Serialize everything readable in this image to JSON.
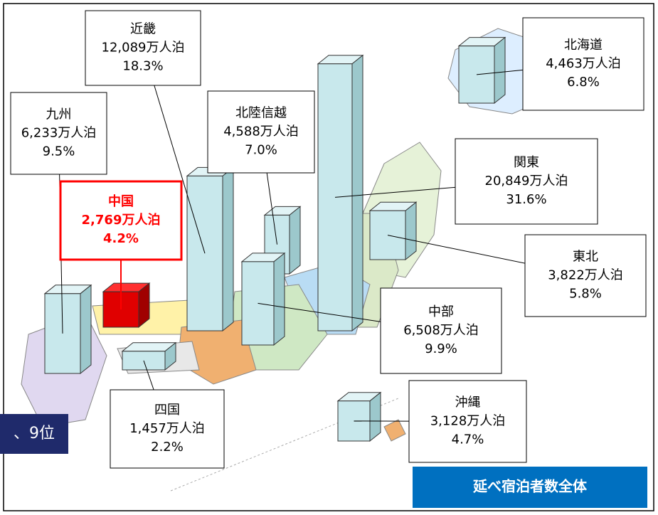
{
  "regions": [
    {
      "name": "北海道",
      "value": 4463,
      "value_label": "4,463万人泊",
      "share_label": "6.8%"
    },
    {
      "name": "関東",
      "value": 20849,
      "value_label": "20,849万人泊",
      "share_label": "31.6%"
    },
    {
      "name": "東北",
      "value": 3822,
      "value_label": "3,822万人泊",
      "share_label": "5.8%"
    },
    {
      "name": "中部",
      "value": 6508,
      "value_label": "6,508万人泊",
      "share_label": "9.9%"
    },
    {
      "name": "沖縄",
      "value": 3128,
      "value_label": "3,128万人泊",
      "share_label": "4.7%"
    },
    {
      "name": "近畿",
      "value": 12089,
      "value_label": "12,089万人泊",
      "share_label": "18.3%"
    },
    {
      "name": "北陸信越",
      "value": 4588,
      "value_label": "4,588万人泊",
      "share_label": "7.0%"
    },
    {
      "name": "九州",
      "value": 6233,
      "value_label": "6,233万人泊",
      "share_label": "9.5%"
    },
    {
      "name": "中国",
      "value": 2769,
      "value_label": "2,769万人泊",
      "share_label": "4.2%"
    },
    {
      "name": "四国",
      "value": 1457,
      "value_label": "1,457万人泊",
      "share_label": "2.2%"
    }
  ],
  "badge": "延べ宿泊者数全体",
  "rank_fragment": "、9位"
}
